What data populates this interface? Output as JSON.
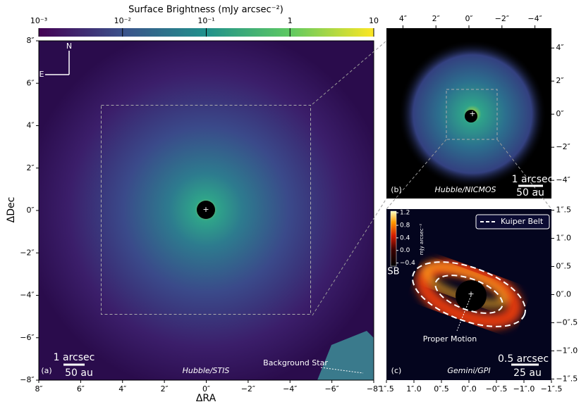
{
  "colorbar": {
    "title": "Surface Brightness (mJy arcsec⁻²)",
    "lim": [
      0.001,
      10
    ],
    "log": true,
    "ticks": [
      {
        "value": 0.001,
        "label": "10⁻³"
      },
      {
        "value": 0.01,
        "label": "10⁻²"
      },
      {
        "value": 0.1,
        "label": "10⁻¹"
      },
      1,
      10
    ]
  },
  "panels": [
    {
      "label": "(a)",
      "xlabel": "ΔRA",
      "ylabel": "ΔDec",
      "instrument": "Hubble/STIS",
      "scale_arcsec": "1 arcsec",
      "scale_au": "50 au",
      "annotation": "Background Star",
      "compass": [
        "N",
        "E"
      ],
      "xlim": [
        8,
        -8
      ],
      "ylim": [
        -8,
        8
      ],
      "xticks": [
        {
          "value": 8,
          "label": "8″"
        },
        {
          "value": 6,
          "label": "6″"
        },
        {
          "value": 4,
          "label": "4″"
        },
        {
          "value": 2,
          "label": "2″"
        },
        {
          "value": 0,
          "label": "0″"
        },
        {
          "value": -2,
          "label": "−2″"
        },
        {
          "value": -4,
          "label": "−4″"
        },
        {
          "value": -6,
          "label": "−6″"
        },
        {
          "value": -8,
          "label": "−8″"
        }
      ],
      "yticks": [
        {
          "value": -8,
          "label": "−8″"
        },
        {
          "value": -6,
          "label": "−6″"
        },
        {
          "value": -4,
          "label": "−4″"
        },
        {
          "value": -2,
          "label": "−2″"
        },
        {
          "value": 0,
          "label": "0″"
        },
        {
          "value": 2,
          "label": "2″"
        },
        {
          "value": 4,
          "label": "4″"
        },
        {
          "value": 6,
          "label": "6″"
        },
        {
          "value": 8,
          "label": "8″"
        }
      ]
    },
    {
      "label": "(b)",
      "instrument": "Hubble/NICMOS",
      "scale_arcsec": "1 arcsec",
      "scale_au": "50 au",
      "xlim": [
        5,
        -5
      ],
      "ylim": [
        -5.1,
        5.2
      ],
      "xticks": [
        {
          "value": 4,
          "label": "4″"
        },
        {
          "value": 2,
          "label": "2″"
        },
        {
          "value": 0,
          "label": "0″"
        },
        {
          "value": -2,
          "label": "−2″"
        },
        {
          "value": -4,
          "label": "−4″"
        }
      ],
      "yticks": [
        {
          "value": 4,
          "label": "4″"
        },
        {
          "value": 2,
          "label": "2″"
        },
        {
          "value": 0,
          "label": "0″"
        },
        {
          "value": -2,
          "label": "−2″"
        },
        {
          "value": -4,
          "label": "−4″"
        }
      ]
    },
    {
      "label": "(c)",
      "instrument": "Gemini/GPI",
      "scale_arcsec": "0.5 arcsec",
      "scale_au": "25 au",
      "legend": "Kuiper Belt",
      "annotation": "Proper Motion",
      "colorbar_label": "SB",
      "colorbar_unit": "mJy arcsec⁻²",
      "colorbar_lim": [
        -0.5,
        1.25
      ],
      "colorbar_ticks": [
        {
          "value": 1.2,
          "label": "1.2"
        },
        {
          "value": 0.8,
          "label": "0.8"
        },
        {
          "value": 0.4,
          "label": "0.4"
        },
        {
          "value": 0,
          "label": "0.0"
        },
        {
          "value": -0.4,
          "label": "−0.4"
        }
      ],
      "xlim": [
        1.5,
        -1.5
      ],
      "ylim": [
        -1.52,
        1.52
      ],
      "xticks": [
        {
          "value": 1.5,
          "label": "1″.5"
        },
        {
          "value": 1,
          "label": "1″.0"
        },
        {
          "value": 0.5,
          "label": "0″.5"
        },
        {
          "value": 0,
          "label": "0″.0"
        },
        {
          "value": -0.5,
          "label": "−0″.5"
        },
        {
          "value": -1,
          "label": "−1″.0"
        },
        {
          "value": -1.5,
          "label": "−1″.5"
        }
      ],
      "yticks": [
        {
          "value": 1.5,
          "label": "1″.5"
        },
        {
          "value": 1,
          "label": "1″.0"
        },
        {
          "value": 0.5,
          "label": "0″.5"
        },
        {
          "value": 0,
          "label": "0″.0"
        },
        {
          "value": -0.5,
          "label": "−0″.5"
        },
        {
          "value": -1,
          "label": "−1″.0"
        },
        {
          "value": -1.5,
          "label": "−1″.5"
        }
      ]
    }
  ]
}
